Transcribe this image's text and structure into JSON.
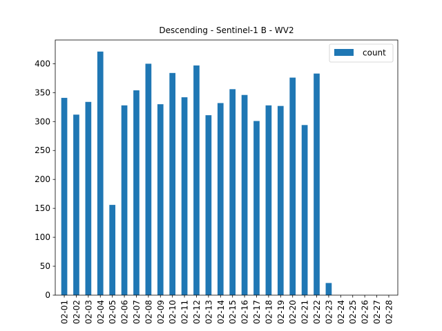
{
  "chart_data": {
    "type": "bar",
    "title": "Descending - Sentinel-1 B - WV2",
    "xlabel": "",
    "ylabel": "",
    "ylim": [
      0,
      441
    ],
    "yticks": [
      0,
      50,
      100,
      150,
      200,
      250,
      300,
      350,
      400
    ],
    "categories": [
      "02-01",
      "02-02",
      "02-03",
      "02-04",
      "02-05",
      "02-06",
      "02-07",
      "02-08",
      "02-09",
      "02-10",
      "02-11",
      "02-12",
      "02-13",
      "02-14",
      "02-15",
      "02-16",
      "02-17",
      "02-18",
      "02-19",
      "02-20",
      "02-21",
      "02-22",
      "02-23",
      "02-24",
      "02-25",
      "02-26",
      "02-27",
      "02-28"
    ],
    "series": [
      {
        "name": "count",
        "color": "#1f77b4",
        "values": [
          341,
          312,
          334,
          421,
          156,
          328,
          354,
          400,
          330,
          384,
          342,
          397,
          311,
          332,
          356,
          346,
          301,
          328,
          327,
          376,
          294,
          383,
          21,
          0,
          0,
          0,
          0,
          0
        ]
      }
    ],
    "legend": {
      "position": "top-right"
    },
    "grid": false
  }
}
